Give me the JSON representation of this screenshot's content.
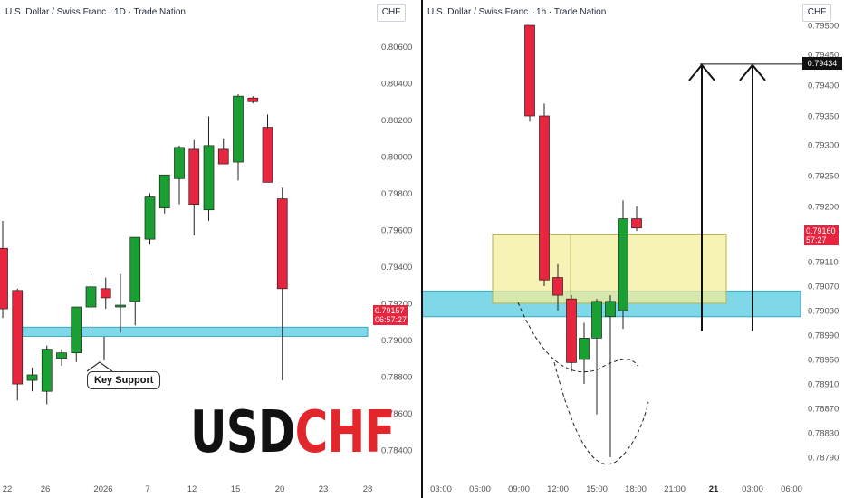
{
  "brand": {
    "part1": "USD",
    "part2": "CHF",
    "color1": "#111111",
    "color2": "#e3262c"
  },
  "colors": {
    "up": "#1aa032",
    "down": "#e8253f",
    "support_zone": "#7fd8e8",
    "resistance_zone": "#f4ee9c"
  },
  "chart_data": [
    {
      "type": "candlestick",
      "title": "U.S. Dollar / Swiss Franc · 1D · Trade Nation",
      "currency": "CHF",
      "timeframe": "1D",
      "x_ticks": [
        "22",
        "26",
        "2026",
        "7",
        "12",
        "15",
        "20",
        "23",
        "28"
      ],
      "y_ticks": [
        0.806,
        0.804,
        0.802,
        0.8,
        0.798,
        0.796,
        0.794,
        0.792,
        0.79,
        0.788,
        0.786,
        0.784
      ],
      "y_tick_labels": [
        "0.80600",
        "0.80400",
        "0.80200",
        "0.80000",
        "0.79800",
        "0.79600",
        "0.79400",
        "0.79200",
        "0.79000",
        "0.78800",
        "0.78600",
        "0.78400"
      ],
      "ylim": [
        0.7825,
        0.8075
      ],
      "candles": [
        {
          "o": 0.795,
          "h": 0.7965,
          "l": 0.7912,
          "c": 0.7917
        },
        {
          "o": 0.7927,
          "h": 0.7928,
          "l": 0.7867,
          "c": 0.7876
        },
        {
          "o": 0.7878,
          "h": 0.7885,
          "l": 0.7872,
          "c": 0.7881
        },
        {
          "o": 0.7872,
          "h": 0.7897,
          "l": 0.7865,
          "c": 0.7895
        },
        {
          "o": 0.789,
          "h": 0.7895,
          "l": 0.7886,
          "c": 0.7893
        },
        {
          "o": 0.7893,
          "h": 0.7918,
          "l": 0.7888,
          "c": 0.7918
        },
        {
          "o": 0.7918,
          "h": 0.7938,
          "l": 0.7905,
          "c": 0.7929
        },
        {
          "o": 0.7928,
          "h": 0.7934,
          "l": 0.7917,
          "c": 0.7923
        },
        {
          "o": 0.7919,
          "h": 0.7936,
          "l": 0.7904,
          "c": 0.7919
        },
        {
          "o": 0.7921,
          "h": 0.7956,
          "l": 0.7908,
          "c": 0.7956
        },
        {
          "o": 0.7955,
          "h": 0.798,
          "l": 0.7952,
          "c": 0.7978
        },
        {
          "o": 0.7972,
          "h": 0.799,
          "l": 0.7969,
          "c": 0.799
        },
        {
          "o": 0.7988,
          "h": 0.8006,
          "l": 0.7974,
          "c": 0.8005
        },
        {
          "o": 0.8004,
          "h": 0.8009,
          "l": 0.7957,
          "c": 0.7974
        },
        {
          "o": 0.7971,
          "h": 0.8022,
          "l": 0.7965,
          "c": 0.8006
        },
        {
          "o": 0.8004,
          "h": 0.801,
          "l": 0.7996,
          "c": 0.7996
        },
        {
          "o": 0.7997,
          "h": 0.8034,
          "l": 0.7987,
          "c": 0.8033
        },
        {
          "o": 0.8032,
          "h": 0.8033,
          "l": 0.8029,
          "c": 0.803
        },
        {
          "o": 0.8016,
          "h": 0.8023,
          "l": 0.7986,
          "c": 0.7986
        },
        {
          "o": 0.7977,
          "h": 0.7983,
          "l": 0.7878,
          "c": 0.7928
        }
      ],
      "support_zone": [
        0.7902,
        0.7907
      ],
      "support_label": "Key Support",
      "last_price": "0.79157",
      "countdown": "06:57:27"
    },
    {
      "type": "candlestick",
      "title": "U.S. Dollar / Swiss Franc · 1h · Trade Nation",
      "currency": "CHF",
      "timeframe": "1h",
      "x_ticks": [
        "03:00",
        "06:00",
        "09:00",
        "12:00",
        "15:00",
        "18:00",
        "21:00",
        "21",
        "03:00",
        "06:00"
      ],
      "y_ticks": [
        0.795,
        0.7945,
        0.794,
        0.7935,
        0.793,
        0.7925,
        0.792,
        0.7911,
        0.7907,
        0.7903,
        0.7899,
        0.7895,
        0.7891,
        0.7887,
        0.7883,
        0.7879
      ],
      "y_tick_labels": [
        "0.79500",
        "0.79450",
        "0.79400",
        "0.79350",
        "0.79300",
        "0.79250",
        "0.79200",
        "0.79110",
        "0.79070",
        "0.79030",
        "0.78990",
        "0.78950",
        "0.78910",
        "0.78870",
        "0.78830",
        "0.78790"
      ],
      "candles": [
        {
          "o": 0.795,
          "h": 0.795,
          "l": 0.7934,
          "c": 0.7935
        },
        {
          "o": 0.7935,
          "h": 0.7937,
          "l": 0.7907,
          "c": 0.7908
        },
        {
          "o": 0.79084,
          "h": 0.79106,
          "l": 0.7903,
          "c": 0.79055
        },
        {
          "o": 0.79049,
          "h": 0.79055,
          "l": 0.7893,
          "c": 0.78945
        },
        {
          "o": 0.7895,
          "h": 0.7901,
          "l": 0.7891,
          "c": 0.78985
        },
        {
          "o": 0.78985,
          "h": 0.79049,
          "l": 0.7886,
          "c": 0.79045
        },
        {
          "o": 0.7902,
          "h": 0.79055,
          "l": 0.7879,
          "c": 0.79045
        },
        {
          "o": 0.7903,
          "h": 0.7921,
          "l": 0.79,
          "c": 0.7918
        },
        {
          "o": 0.7918,
          "h": 0.792,
          "l": 0.7916,
          "c": 0.79165
        }
      ],
      "resistance_zone": [
        0.79042,
        0.79155
      ],
      "support_zone": [
        0.7902,
        0.79062
      ],
      "target_price": "0.79434",
      "last_price": "0.79160",
      "countdown": "57:27"
    }
  ]
}
